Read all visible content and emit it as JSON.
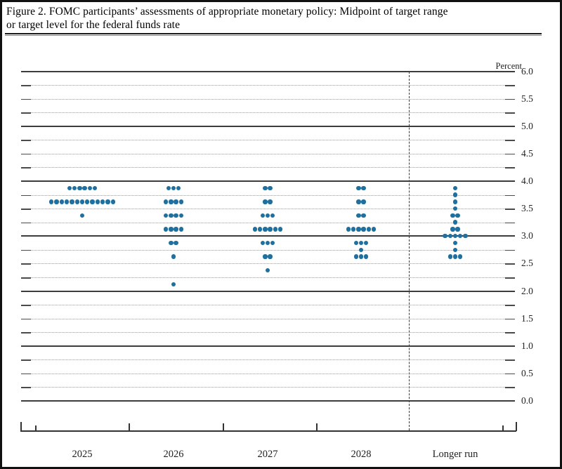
{
  "title": {
    "line1": "Figure 2. FOMC participants’ assessments of appropriate monetary policy: Midpoint of target range",
    "line2": "or target level for the federal funds rate"
  },
  "chart_data": {
    "type": "scatter",
    "subtype": "fomc-dot-plot",
    "title": "FOMC participants’ assessments of appropriate monetary policy: Midpoint of target range or target level for the federal funds rate",
    "unit_label": "Percent",
    "ylabel": "Percent",
    "xlabel": "",
    "ylim": [
      0.0,
      6.0
    ],
    "ytick_label_step": 0.5,
    "ytick_minor_step": 0.25,
    "ytick_labels": [
      "6.0",
      "5.5",
      "5.0",
      "4.5",
      "4.0",
      "3.5",
      "3.0",
      "2.5",
      "2.0",
      "1.5",
      "1.0",
      "0.5",
      "0.0"
    ],
    "grid": "solid major lines at whole percents, dotted minor lines at quarter percents",
    "legend": "none",
    "categories": [
      "2025",
      "2026",
      "2027",
      "2028",
      "Longer run"
    ],
    "separator_before_category": "Longer run",
    "dot_color": "#1f6f9f",
    "series": [
      {
        "name": "2025",
        "points": [
          {
            "value": 3.875,
            "count": 6
          },
          {
            "value": 3.625,
            "count": 13
          },
          {
            "value": 3.375,
            "count": 1
          }
        ]
      },
      {
        "name": "2026",
        "points": [
          {
            "value": 3.875,
            "count": 3
          },
          {
            "value": 3.625,
            "count": 4
          },
          {
            "value": 3.375,
            "count": 4
          },
          {
            "value": 3.125,
            "count": 4
          },
          {
            "value": 2.875,
            "count": 2
          },
          {
            "value": 2.625,
            "count": 1
          },
          {
            "value": 2.125,
            "count": 1
          }
        ]
      },
      {
        "name": "2027",
        "points": [
          {
            "value": 3.875,
            "count": 2
          },
          {
            "value": 3.625,
            "count": 2
          },
          {
            "value": 3.375,
            "count": 3
          },
          {
            "value": 3.125,
            "count": 6
          },
          {
            "value": 2.875,
            "count": 3
          },
          {
            "value": 2.625,
            "count": 2
          },
          {
            "value": 2.375,
            "count": 1
          }
        ]
      },
      {
        "name": "2028",
        "points": [
          {
            "value": 3.875,
            "count": 2
          },
          {
            "value": 3.625,
            "count": 2
          },
          {
            "value": 3.375,
            "count": 2
          },
          {
            "value": 3.125,
            "count": 6
          },
          {
            "value": 2.875,
            "count": 3
          },
          {
            "value": 2.75,
            "count": 1
          },
          {
            "value": 2.625,
            "count": 3
          }
        ]
      },
      {
        "name": "Longer run",
        "points": [
          {
            "value": 3.875,
            "count": 1
          },
          {
            "value": 3.75,
            "count": 1
          },
          {
            "value": 3.625,
            "count": 1
          },
          {
            "value": 3.5,
            "count": 1
          },
          {
            "value": 3.375,
            "count": 2
          },
          {
            "value": 3.25,
            "count": 1
          },
          {
            "value": 3.125,
            "count": 2
          },
          {
            "value": 3.0,
            "count": 5
          },
          {
            "value": 2.875,
            "count": 1
          },
          {
            "value": 2.75,
            "count": 1
          },
          {
            "value": 2.625,
            "count": 3
          }
        ]
      }
    ]
  }
}
